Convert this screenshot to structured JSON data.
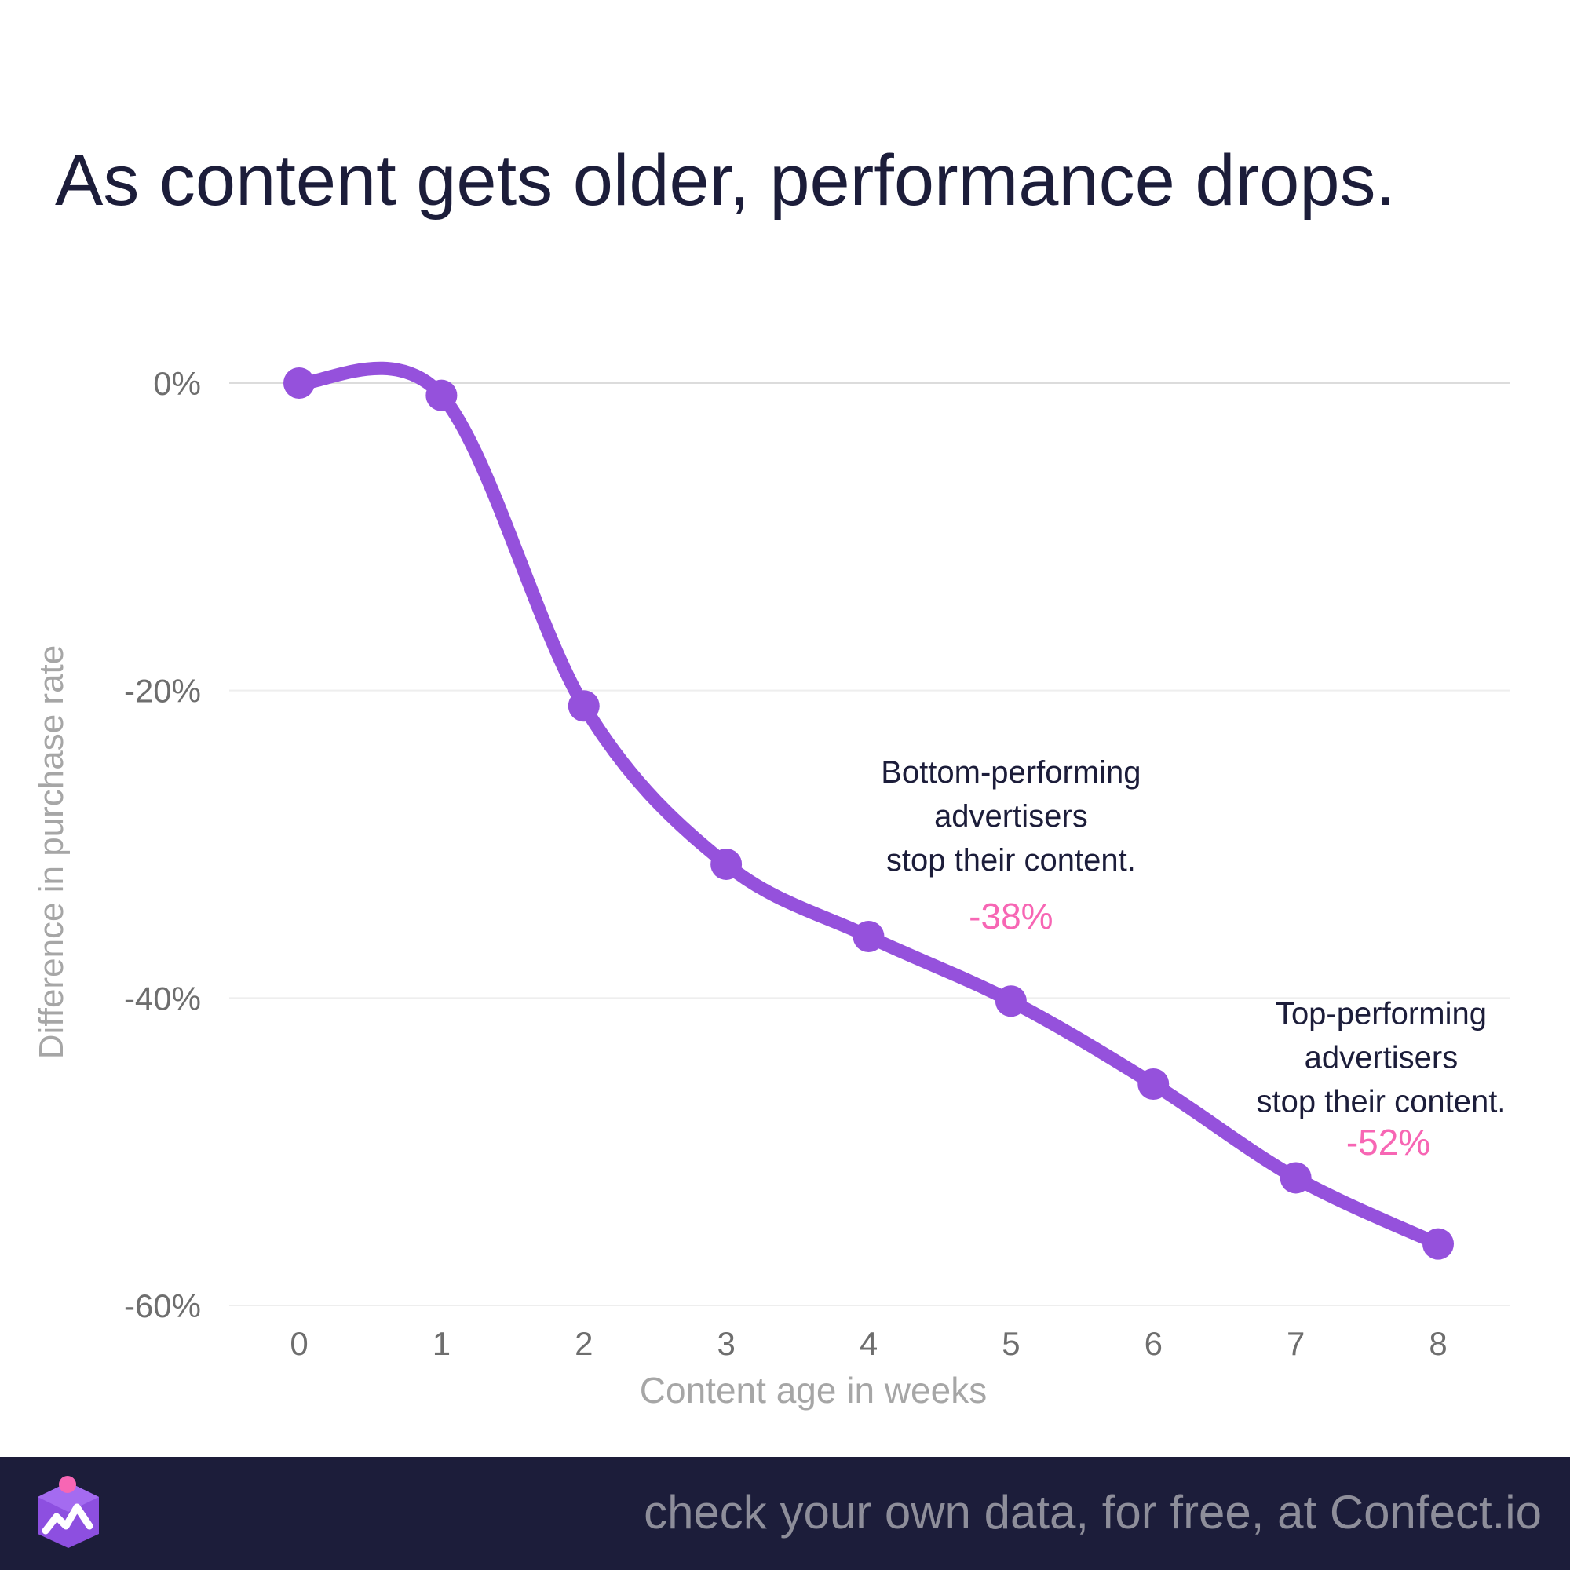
{
  "title": "As content gets older, performance drops.",
  "chart_data": {
    "type": "line",
    "xlabel": "Content age in weeks",
    "ylabel": "Difference in purchase rate",
    "x": [
      0,
      1,
      2,
      3,
      4,
      5,
      6,
      7,
      8
    ],
    "series": [
      {
        "values": [
          0,
          -0.8,
          -21,
          -31.3,
          -36,
          -40.2,
          -45.6,
          -51.7,
          -56
        ]
      }
    ],
    "xlim": [
      0,
      8
    ],
    "ylim": [
      -60,
      0
    ],
    "yticks": [
      0,
      -20,
      -40,
      -60
    ],
    "ytick_labels": [
      "0%",
      "-20%",
      "-40%",
      "-60%"
    ],
    "xtick_labels": [
      "0",
      "1",
      "2",
      "3",
      "4",
      "5",
      "6",
      "7",
      "8"
    ],
    "grid": true,
    "line_color": "#9551dc",
    "annotations": [
      {
        "x": 5,
        "y": -26,
        "lines": [
          "Bottom-performing",
          "advertisers",
          "stop their content."
        ],
        "color": "#1c1d3a"
      },
      {
        "x": 5,
        "y": -35.5,
        "lines": [
          "-38%"
        ],
        "color": "#f766b4"
      },
      {
        "x": 7.6,
        "y": -41.7,
        "lines": [
          "Top-performing",
          "advertisers",
          "stop their content."
        ],
        "color": "#1c1d3a"
      },
      {
        "x": 7.65,
        "y": -50.2,
        "lines": [
          "-52%"
        ],
        "color": "#f766b4"
      }
    ]
  },
  "footer": {
    "text": "check your own data, for free, at Confect.io",
    "logo_icon": "confect-logo-icon"
  }
}
